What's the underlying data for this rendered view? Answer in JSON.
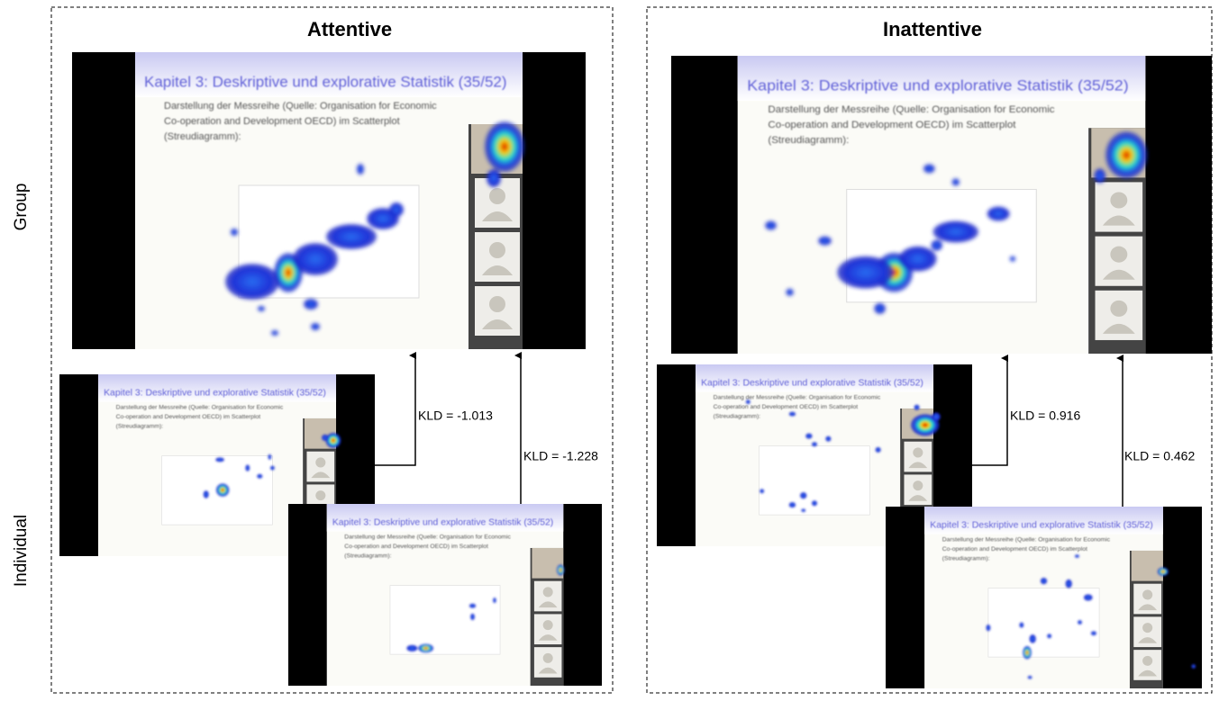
{
  "rows": [
    "Group",
    "Individual"
  ],
  "panels": [
    {
      "title": "Attentive",
      "kld": [
        "KLD = -1.013",
        "KLD = -1.228"
      ]
    },
    {
      "title": "Inattentive",
      "kld": [
        "KLD = 0.916",
        "KLD = 0.462"
      ]
    }
  ],
  "slide": {
    "title": "Kapitel 3: Deskriptive und explorative Statistik (35/52)",
    "body": [
      "Darstellung der Messreihe (Quelle: Organisation for Economic",
      "Co-operation and Development OECD) im Scatterplot",
      "(Streudiagramm):"
    ]
  }
}
